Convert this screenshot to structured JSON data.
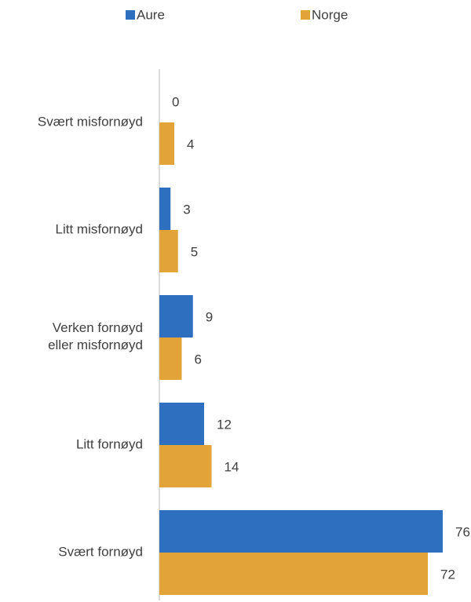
{
  "chart_data": {
    "type": "bar",
    "orientation": "horizontal",
    "categories": [
      "Svært misfornøyd",
      "Litt misfornøyd",
      "Verken fornøyd eller misfornøyd",
      "Litt fornøyd",
      "Svært fornøyd"
    ],
    "series": [
      {
        "name": "Aure",
        "color": "#2e6fc0",
        "values": [
          0,
          3,
          9,
          12,
          76
        ]
      },
      {
        "name": "Norge",
        "color": "#e2a338",
        "values": [
          4,
          5,
          6,
          14,
          72
        ]
      }
    ],
    "xlim": [
      0,
      80
    ],
    "legend": "top"
  }
}
